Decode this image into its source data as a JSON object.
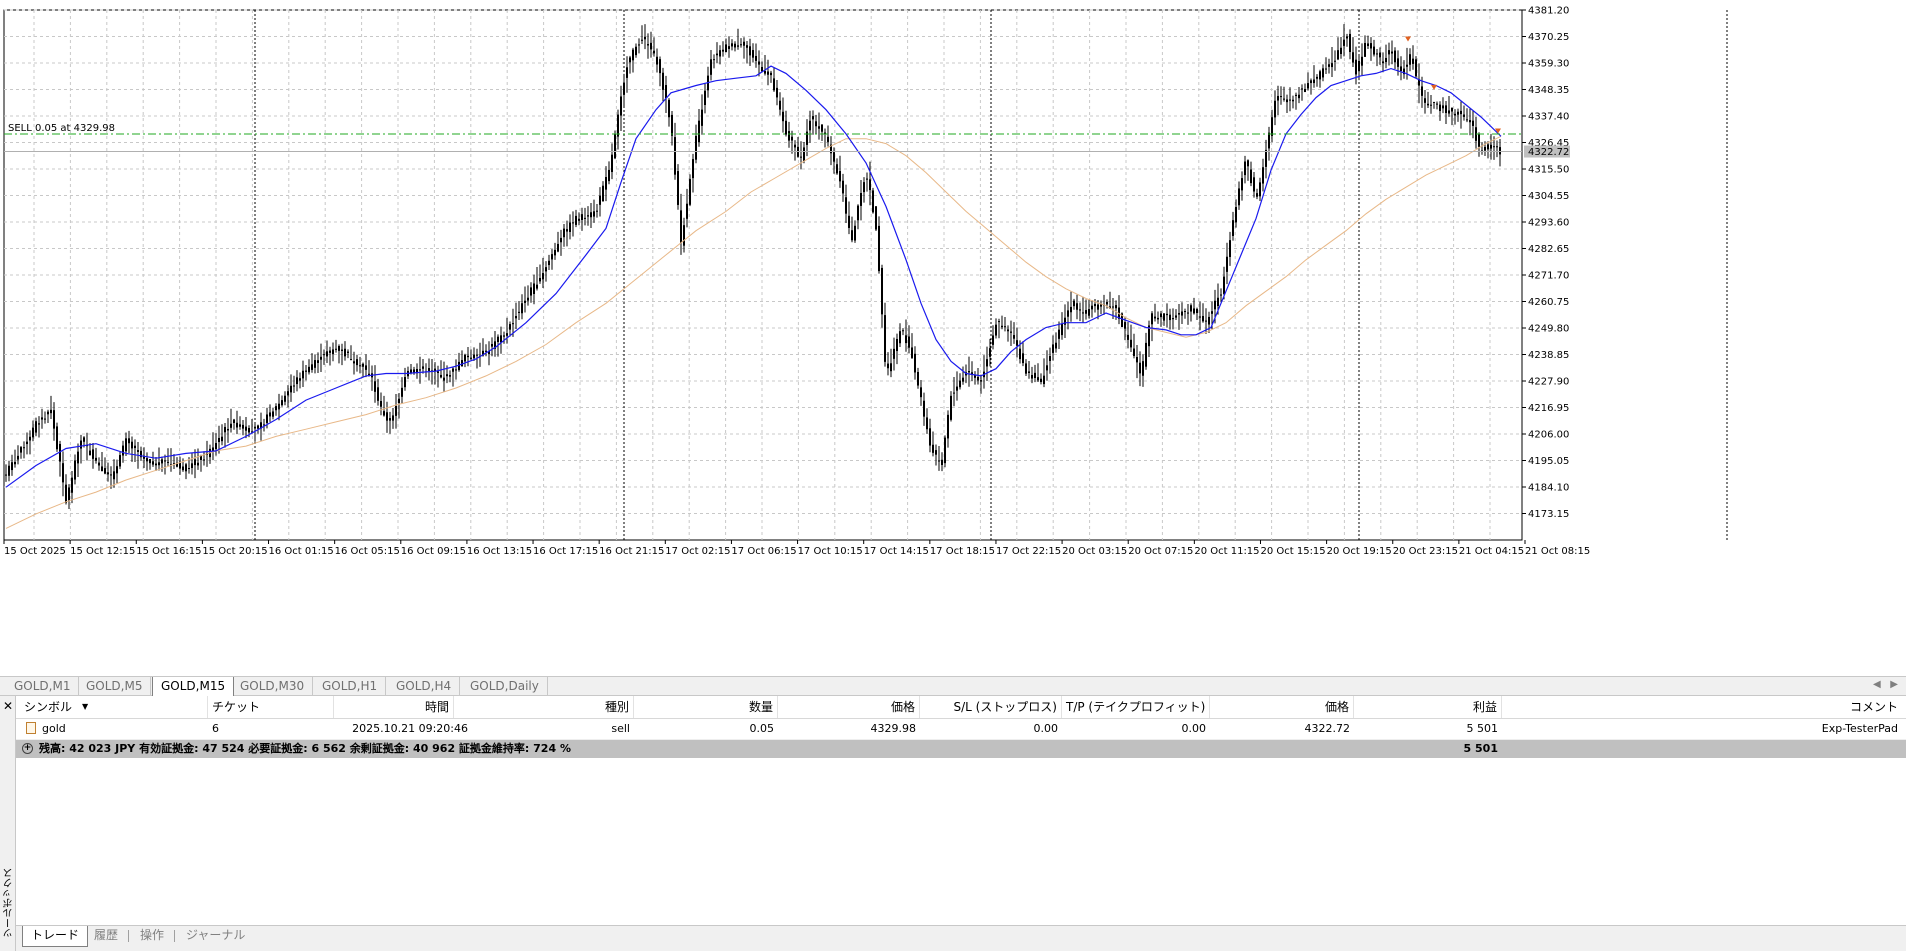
{
  "chart": {
    "trade_line_label": "SELL 0.05 at 4329.98",
    "current_price_label": "4322.72",
    "price_ticks": [
      "4381.20",
      "4370.25",
      "4359.30",
      "4348.35",
      "4337.40",
      "4326.45",
      "4315.50",
      "4304.55",
      "4293.60",
      "4282.65",
      "4271.70",
      "4260.75",
      "4249.80",
      "4238.85",
      "4227.90",
      "4216.95",
      "4206.00",
      "4195.05",
      "4184.10",
      "4173.15"
    ],
    "time_ticks": [
      "15 Oct 2025",
      "15 Oct 12:15",
      "15 Oct 16:15",
      "15 Oct 20:15",
      "16 Oct 01:15",
      "16 Oct 05:15",
      "16 Oct 09:15",
      "16 Oct 13:15",
      "16 Oct 17:15",
      "16 Oct 21:15",
      "17 Oct 02:15",
      "17 Oct 06:15",
      "17 Oct 10:15",
      "17 Oct 14:15",
      "17 Oct 18:15",
      "17 Oct 22:15",
      "20 Oct 03:15",
      "20 Oct 07:15",
      "20 Oct 11:15",
      "20 Oct 15:15",
      "20 Oct 19:15",
      "20 Oct 23:15",
      "21 Oct 04:15",
      "21 Oct 08:15"
    ],
    "colors": {
      "grid": "#c8c8c8",
      "candle": "#000000",
      "ma_fast": "#1a1aee",
      "ma_slow": "#e8b888",
      "trade_line": "#22aa22",
      "current_line": "#b0b0b0",
      "arrow": "#e06020"
    }
  },
  "chart_data": {
    "type": "line",
    "ylim": [
      4162.2,
      4381.2
    ],
    "price_path": [
      [
        0,
        4190
      ],
      [
        12,
        4197
      ],
      [
        30,
        4210
      ],
      [
        45,
        4216
      ],
      [
        60,
        4178
      ],
      [
        75,
        4204
      ],
      [
        90,
        4195
      ],
      [
        105,
        4188
      ],
      [
        120,
        4203
      ],
      [
        140,
        4194
      ],
      [
        160,
        4195
      ],
      [
        180,
        4192
      ],
      [
        200,
        4197
      ],
      [
        225,
        4211
      ],
      [
        250,
        4207
      ],
      [
        275,
        4220
      ],
      [
        300,
        4233
      ],
      [
        330,
        4242
      ],
      [
        350,
        4236
      ],
      [
        365,
        4230
      ],
      [
        375,
        4216
      ],
      [
        385,
        4210
      ],
      [
        400,
        4232
      ],
      [
        420,
        4233
      ],
      [
        440,
        4229
      ],
      [
        460,
        4238
      ],
      [
        480,
        4240
      ],
      [
        500,
        4248
      ],
      [
        520,
        4262
      ],
      [
        540,
        4275
      ],
      [
        555,
        4288
      ],
      [
        570,
        4295
      ],
      [
        590,
        4298
      ],
      [
        605,
        4318
      ],
      [
        620,
        4358
      ],
      [
        635,
        4370
      ],
      [
        650,
        4362
      ],
      [
        665,
        4334
      ],
      [
        675,
        4285
      ],
      [
        690,
        4328
      ],
      [
        705,
        4360
      ],
      [
        720,
        4366
      ],
      [
        735,
        4368
      ],
      [
        750,
        4360
      ],
      [
        765,
        4353
      ],
      [
        780,
        4330
      ],
      [
        795,
        4320
      ],
      [
        805,
        4337
      ],
      [
        820,
        4329
      ],
      [
        835,
        4310
      ],
      [
        845,
        4285
      ],
      [
        860,
        4315
      ],
      [
        870,
        4292
      ],
      [
        875,
        4262
      ],
      [
        880,
        4230
      ],
      [
        895,
        4250
      ],
      [
        905,
        4240
      ],
      [
        915,
        4220
      ],
      [
        925,
        4200
      ],
      [
        935,
        4192
      ],
      [
        945,
        4222
      ],
      [
        960,
        4232
      ],
      [
        975,
        4228
      ],
      [
        990,
        4252
      ],
      [
        1005,
        4248
      ],
      [
        1020,
        4232
      ],
      [
        1035,
        4228
      ],
      [
        1050,
        4245
      ],
      [
        1065,
        4260
      ],
      [
        1080,
        4256
      ],
      [
        1095,
        4260
      ],
      [
        1110,
        4258
      ],
      [
        1125,
        4242
      ],
      [
        1135,
        4230
      ],
      [
        1145,
        4255
      ],
      [
        1165,
        4254
      ],
      [
        1185,
        4258
      ],
      [
        1200,
        4252
      ],
      [
        1215,
        4265
      ],
      [
        1225,
        4290
      ],
      [
        1240,
        4320
      ],
      [
        1250,
        4302
      ],
      [
        1260,
        4324
      ],
      [
        1270,
        4345
      ],
      [
        1285,
        4344
      ],
      [
        1300,
        4350
      ],
      [
        1315,
        4355
      ],
      [
        1330,
        4362
      ],
      [
        1340,
        4372
      ],
      [
        1350,
        4355
      ],
      [
        1360,
        4368
      ],
      [
        1375,
        4360
      ],
      [
        1385,
        4364
      ],
      [
        1395,
        4355
      ],
      [
        1405,
        4363
      ],
      [
        1415,
        4345
      ],
      [
        1425,
        4342
      ],
      [
        1440,
        4340
      ],
      [
        1455,
        4338
      ],
      [
        1465,
        4335
      ],
      [
        1475,
        4322
      ],
      [
        1485,
        4326
      ],
      [
        1495,
        4322
      ]
    ],
    "ma_fast_path": [
      [
        0,
        4184
      ],
      [
        30,
        4193
      ],
      [
        60,
        4200
      ],
      [
        90,
        4202
      ],
      [
        120,
        4198
      ],
      [
        150,
        4196
      ],
      [
        180,
        4198
      ],
      [
        210,
        4199
      ],
      [
        240,
        4205
      ],
      [
        270,
        4212
      ],
      [
        300,
        4220
      ],
      [
        330,
        4225
      ],
      [
        360,
        4230
      ],
      [
        380,
        4231
      ],
      [
        400,
        4231
      ],
      [
        430,
        4232
      ],
      [
        450,
        4234
      ],
      [
        470,
        4237
      ],
      [
        490,
        4242
      ],
      [
        520,
        4252
      ],
      [
        550,
        4264
      ],
      [
        580,
        4280
      ],
      [
        600,
        4291
      ],
      [
        615,
        4310
      ],
      [
        630,
        4328
      ],
      [
        650,
        4340
      ],
      [
        665,
        4347
      ],
      [
        690,
        4350
      ],
      [
        710,
        4352
      ],
      [
        730,
        4353
      ],
      [
        750,
        4354
      ],
      [
        765,
        4358
      ],
      [
        780,
        4355
      ],
      [
        800,
        4348
      ],
      [
        820,
        4340
      ],
      [
        840,
        4330
      ],
      [
        860,
        4318
      ],
      [
        880,
        4300
      ],
      [
        900,
        4278
      ],
      [
        915,
        4260
      ],
      [
        930,
        4245
      ],
      [
        945,
        4236
      ],
      [
        960,
        4231
      ],
      [
        975,
        4230
      ],
      [
        990,
        4233
      ],
      [
        1005,
        4240
      ],
      [
        1020,
        4245
      ],
      [
        1040,
        4250
      ],
      [
        1060,
        4252
      ],
      [
        1080,
        4252
      ],
      [
        1100,
        4256
      ],
      [
        1120,
        4253
      ],
      [
        1140,
        4250
      ],
      [
        1160,
        4249
      ],
      [
        1175,
        4247
      ],
      [
        1190,
        4247
      ],
      [
        1205,
        4250
      ],
      [
        1220,
        4265
      ],
      [
        1235,
        4280
      ],
      [
        1250,
        4295
      ],
      [
        1265,
        4315
      ],
      [
        1280,
        4330
      ],
      [
        1295,
        4338
      ],
      [
        1310,
        4345
      ],
      [
        1325,
        4350
      ],
      [
        1340,
        4352
      ],
      [
        1355,
        4354
      ],
      [
        1370,
        4355
      ],
      [
        1385,
        4357
      ],
      [
        1400,
        4355
      ],
      [
        1415,
        4352
      ],
      [
        1430,
        4350
      ],
      [
        1445,
        4347
      ],
      [
        1460,
        4342
      ],
      [
        1475,
        4337
      ],
      [
        1485,
        4333
      ],
      [
        1495,
        4329
      ]
    ],
    "ma_slow_path": [
      [
        0,
        4167
      ],
      [
        30,
        4173
      ],
      [
        60,
        4178
      ],
      [
        90,
        4182
      ],
      [
        120,
        4187
      ],
      [
        150,
        4191
      ],
      [
        180,
        4195
      ],
      [
        210,
        4199
      ],
      [
        240,
        4201
      ],
      [
        270,
        4205
      ],
      [
        300,
        4208
      ],
      [
        330,
        4211
      ],
      [
        360,
        4214
      ],
      [
        390,
        4218
      ],
      [
        420,
        4221
      ],
      [
        450,
        4225
      ],
      [
        480,
        4230
      ],
      [
        510,
        4236
      ],
      [
        540,
        4243
      ],
      [
        570,
        4252
      ],
      [
        600,
        4260
      ],
      [
        630,
        4270
      ],
      [
        660,
        4280
      ],
      [
        690,
        4290
      ],
      [
        720,
        4298
      ],
      [
        745,
        4306
      ],
      [
        770,
        4312
      ],
      [
        795,
        4318
      ],
      [
        820,
        4324
      ],
      [
        840,
        4328
      ],
      [
        860,
        4328
      ],
      [
        880,
        4326
      ],
      [
        900,
        4321
      ],
      [
        920,
        4314
      ],
      [
        940,
        4306
      ],
      [
        960,
        4298
      ],
      [
        980,
        4291
      ],
      [
        1000,
        4284
      ],
      [
        1020,
        4277
      ],
      [
        1040,
        4271
      ],
      [
        1060,
        4266
      ],
      [
        1080,
        4262
      ],
      [
        1100,
        4259
      ],
      [
        1120,
        4254
      ],
      [
        1140,
        4250
      ],
      [
        1160,
        4248
      ],
      [
        1180,
        4246
      ],
      [
        1200,
        4248
      ],
      [
        1220,
        4252
      ],
      [
        1240,
        4259
      ],
      [
        1260,
        4265
      ],
      [
        1280,
        4271
      ],
      [
        1300,
        4278
      ],
      [
        1320,
        4284
      ],
      [
        1340,
        4290
      ],
      [
        1360,
        4297
      ],
      [
        1380,
        4303
      ],
      [
        1400,
        4308
      ],
      [
        1420,
        4313
      ],
      [
        1440,
        4317
      ],
      [
        1460,
        4321
      ],
      [
        1480,
        4326
      ],
      [
        1495,
        4329
      ]
    ],
    "trade_price": 4329.98,
    "current_price": 4322.72,
    "arrow_marks": [
      [
        1402,
        4369
      ],
      [
        1428,
        4349
      ],
      [
        1492,
        4331
      ]
    ]
  },
  "symbol_tabs": [
    {
      "label": "GOLD,M1",
      "active": false
    },
    {
      "label": "GOLD,M5",
      "active": false
    },
    {
      "label": "GOLD,M15",
      "active": true
    },
    {
      "label": "GOLD,M30",
      "active": false
    },
    {
      "label": "GOLD,H1",
      "active": false
    },
    {
      "label": "GOLD,H4",
      "active": false
    },
    {
      "label": "GOLD,Daily",
      "active": false
    }
  ],
  "toolbox": {
    "close_glyph": "✕",
    "vertical_label": "ツールボックス",
    "columns": {
      "symbol": "シンボル",
      "ticket": "チケット",
      "time": "時間",
      "type": "種別",
      "volume": "数量",
      "price": "価格",
      "sl": "S/L (ストップロス)",
      "tp": "T/P (テイクプロフィット)",
      "cur_price": "価格",
      "profit": "利益",
      "comment": "コメント"
    },
    "row": {
      "symbol": "gold",
      "ticket": "6",
      "time": "2025.10.21 09:20:46",
      "type": "sell",
      "volume": "0.05",
      "price": "4329.98",
      "sl": "0.00",
      "tp": "0.00",
      "cur_price": "4322.72",
      "profit": "5 501",
      "comment": "Exp-TesterPad"
    },
    "summary": {
      "text": "残高: 42 023 JPY  有効証拠金: 47 524  必要証拠金: 6 562  余剰証拠金: 40 962  証拠金維持率: 724 %",
      "profit": "5 501"
    },
    "tabs": [
      {
        "label": "トレード",
        "active": true
      },
      {
        "label": "履歴",
        "active": false
      },
      {
        "label": "操作",
        "active": false
      },
      {
        "label": "ジャーナル",
        "active": false
      }
    ]
  }
}
